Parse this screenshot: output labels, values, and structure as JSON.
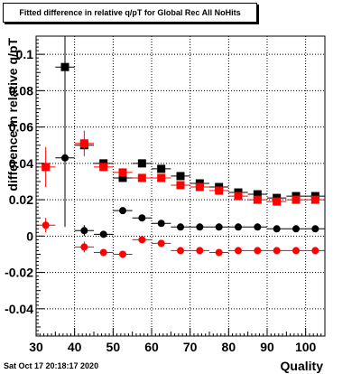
{
  "chart_data": {
    "type": "scatter",
    "title": "Fitted difference in relative q/pT for Global Rec All NoHits",
    "xlabel": "Quality",
    "ylabel": "difference in relative q/pT",
    "xlim": [
      30,
      105
    ],
    "ylim": [
      -0.055,
      0.11
    ],
    "grid": true,
    "x_ticks": [
      30,
      40,
      50,
      60,
      70,
      80,
      90,
      100
    ],
    "y_ticks": [
      -0.04,
      -0.02,
      0,
      0.02,
      0.04,
      0.06,
      0.08,
      0.1
    ],
    "series": [
      {
        "marker": "square",
        "color": "#000000",
        "points": [
          {
            "x": 37.5,
            "y": 0.093,
            "err": 0.088
          },
          {
            "x": 42.5,
            "y": 0.05,
            "err": 0.002
          },
          {
            "x": 47.5,
            "y": 0.04,
            "err": 0.002
          },
          {
            "x": 52.5,
            "y": 0.032,
            "err": 0.0015
          },
          {
            "x": 57.5,
            "y": 0.04,
            "err": 0.0015
          },
          {
            "x": 62.5,
            "y": 0.037,
            "err": 0.0015
          },
          {
            "x": 67.5,
            "y": 0.033,
            "err": 0.0012
          },
          {
            "x": 72.5,
            "y": 0.029,
            "err": 0.0012
          },
          {
            "x": 77.5,
            "y": 0.027,
            "err": 0.0012
          },
          {
            "x": 82.5,
            "y": 0.024,
            "err": 0.001
          },
          {
            "x": 87.5,
            "y": 0.023,
            "err": 0.001
          },
          {
            "x": 92.5,
            "y": 0.021,
            "err": 0.001
          },
          {
            "x": 97.5,
            "y": 0.022,
            "err": 0.001
          },
          {
            "x": 102.5,
            "y": 0.022,
            "err": 0.001
          }
        ]
      },
      {
        "marker": "square",
        "color": "#ff0000",
        "points": [
          {
            "x": 32.5,
            "y": 0.038,
            "err": 0.011
          },
          {
            "x": 42.5,
            "y": 0.051,
            "err": 0.007
          },
          {
            "x": 47.5,
            "y": 0.038,
            "err": 0.002
          },
          {
            "x": 52.5,
            "y": 0.035,
            "err": 0.002
          },
          {
            "x": 57.5,
            "y": 0.032,
            "err": 0.0015
          },
          {
            "x": 62.5,
            "y": 0.032,
            "err": 0.0015
          },
          {
            "x": 67.5,
            "y": 0.028,
            "err": 0.0012
          },
          {
            "x": 72.5,
            "y": 0.027,
            "err": 0.0012
          },
          {
            "x": 77.5,
            "y": 0.025,
            "err": 0.0012
          },
          {
            "x": 82.5,
            "y": 0.022,
            "err": 0.001
          },
          {
            "x": 87.5,
            "y": 0.02,
            "err": 0.001
          },
          {
            "x": 92.5,
            "y": 0.019,
            "err": 0.001
          },
          {
            "x": 97.5,
            "y": 0.02,
            "err": 0.001
          },
          {
            "x": 102.5,
            "y": 0.02,
            "err": 0.001
          }
        ]
      },
      {
        "marker": "circle",
        "color": "#000000",
        "points": [
          {
            "x": 37.5,
            "y": 0.043,
            "err": 0.001
          },
          {
            "x": 42.5,
            "y": 0.003,
            "err": 0.003
          },
          {
            "x": 47.5,
            "y": 0.001,
            "err": 0.001
          },
          {
            "x": 52.5,
            "y": 0.014,
            "err": 0.0008
          },
          {
            "x": 57.5,
            "y": 0.01,
            "err": 0.0008
          },
          {
            "x": 62.5,
            "y": 0.007,
            "err": 0.0007
          },
          {
            "x": 67.5,
            "y": 0.005,
            "err": 0.0006
          },
          {
            "x": 72.5,
            "y": 0.005,
            "err": 0.0006
          },
          {
            "x": 77.5,
            "y": 0.005,
            "err": 0.0006
          },
          {
            "x": 82.5,
            "y": 0.005,
            "err": 0.0005
          },
          {
            "x": 87.5,
            "y": 0.005,
            "err": 0.0005
          },
          {
            "x": 92.5,
            "y": 0.004,
            "err": 0.0005
          },
          {
            "x": 97.5,
            "y": 0.004,
            "err": 0.0005
          },
          {
            "x": 102.5,
            "y": 0.004,
            "err": 0.0005
          }
        ]
      },
      {
        "marker": "circle",
        "color": "#ff0000",
        "points": [
          {
            "x": 32.5,
            "y": 0.006,
            "err": 0.004
          },
          {
            "x": 42.5,
            "y": -0.006,
            "err": 0.003
          },
          {
            "x": 47.5,
            "y": -0.009,
            "err": 0.0015
          },
          {
            "x": 52.5,
            "y": -0.01,
            "err": 0.001
          },
          {
            "x": 57.5,
            "y": -0.002,
            "err": 0.0008
          },
          {
            "x": 62.5,
            "y": -0.004,
            "err": 0.0008
          },
          {
            "x": 67.5,
            "y": -0.008,
            "err": 0.0007
          },
          {
            "x": 72.5,
            "y": -0.008,
            "err": 0.0007
          },
          {
            "x": 77.5,
            "y": -0.009,
            "err": 0.0007
          },
          {
            "x": 82.5,
            "y": -0.008,
            "err": 0.0006
          },
          {
            "x": 87.5,
            "y": -0.008,
            "err": 0.0006
          },
          {
            "x": 92.5,
            "y": -0.008,
            "err": 0.0006
          },
          {
            "x": 97.5,
            "y": -0.008,
            "err": 0.0006
          },
          {
            "x": 102.5,
            "y": -0.008,
            "err": 0.0006
          }
        ]
      }
    ]
  },
  "footer": {
    "timestamp": "Sat Oct 17 20:18:17 2020"
  }
}
